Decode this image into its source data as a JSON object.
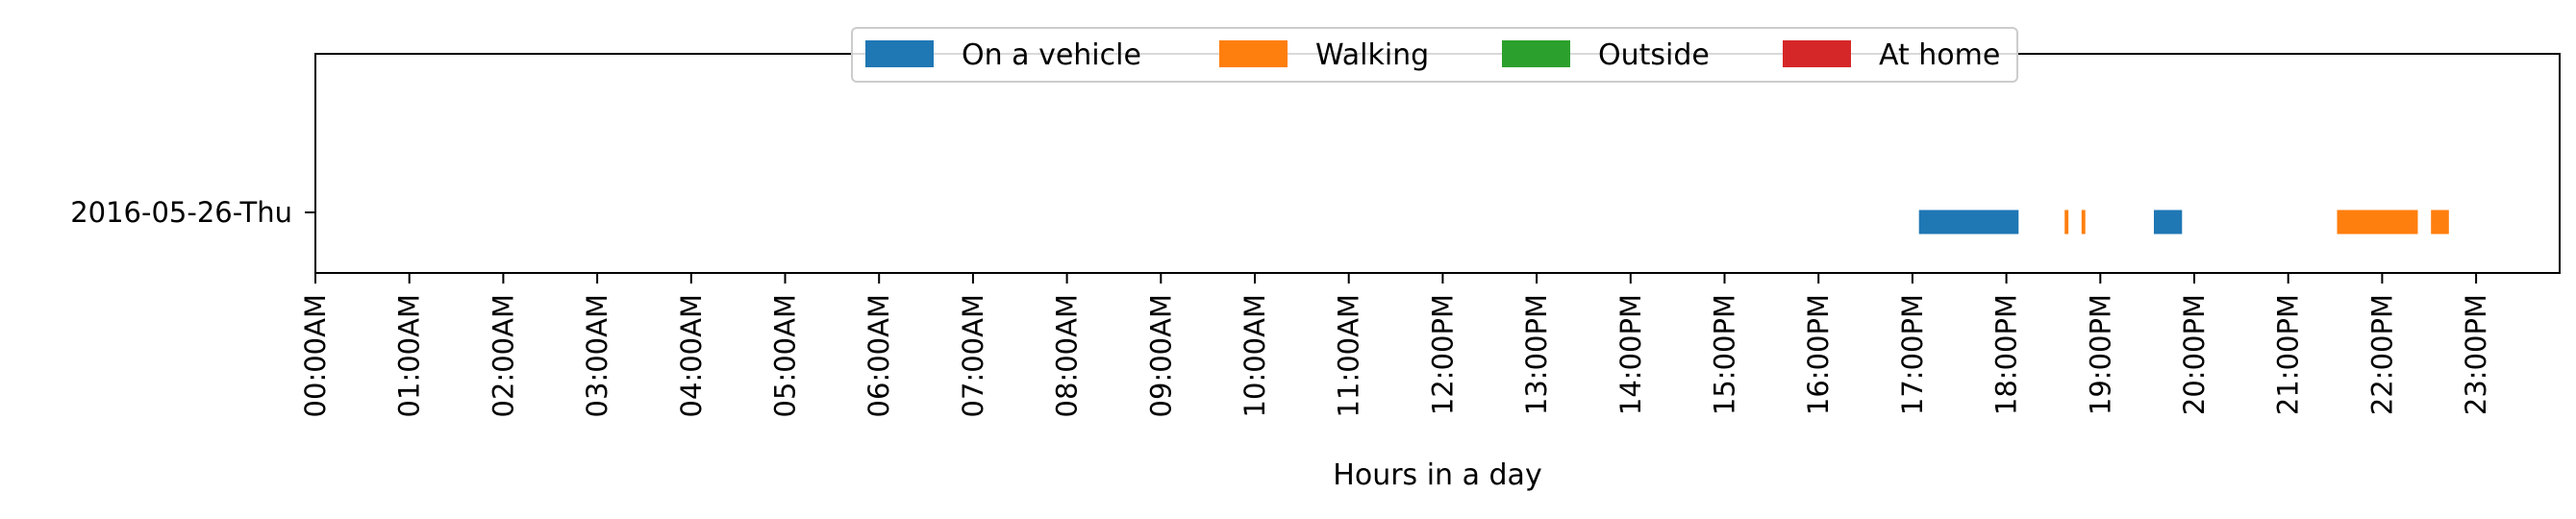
{
  "chart_data": {
    "type": "timeline",
    "title": "",
    "xlabel": "Hours in a day",
    "ylabel": "",
    "xlim": [
      0,
      24
    ],
    "x_tick_labels": [
      "00:00AM",
      "01:00AM",
      "02:00AM",
      "03:00AM",
      "04:00AM",
      "05:00AM",
      "06:00AM",
      "07:00AM",
      "08:00AM",
      "09:00AM",
      "10:00AM",
      "11:00AM",
      "12:00PM",
      "13:00PM",
      "14:00PM",
      "15:00PM",
      "16:00PM",
      "17:00PM",
      "18:00PM",
      "19:00PM",
      "20:00PM",
      "21:00PM",
      "22:00PM",
      "23:00PM"
    ],
    "categories": [
      "2016-05-26-Thu"
    ],
    "legend": {
      "placement": "top-center",
      "entries": [
        {
          "name": "On a vehicle",
          "color": "#1f77b4"
        },
        {
          "name": "Walking",
          "color": "#ff7f0e"
        },
        {
          "name": "Outside",
          "color": "#2ca02c"
        },
        {
          "name": "At home",
          "color": "#d62728"
        }
      ]
    },
    "segments": [
      {
        "category": "2016-05-26-Thu",
        "activity": "On a vehicle",
        "start": 17.07,
        "end": 18.13
      },
      {
        "category": "2016-05-26-Thu",
        "activity": "Walking",
        "start": 18.62,
        "end": 18.66
      },
      {
        "category": "2016-05-26-Thu",
        "activity": "Walking",
        "start": 18.8,
        "end": 18.84
      },
      {
        "category": "2016-05-26-Thu",
        "activity": "On a vehicle",
        "start": 19.57,
        "end": 19.87
      },
      {
        "category": "2016-05-26-Thu",
        "activity": "Walking",
        "start": 21.52,
        "end": 22.38
      },
      {
        "category": "2016-05-26-Thu",
        "activity": "Walking",
        "start": 22.52,
        "end": 22.71
      }
    ]
  }
}
